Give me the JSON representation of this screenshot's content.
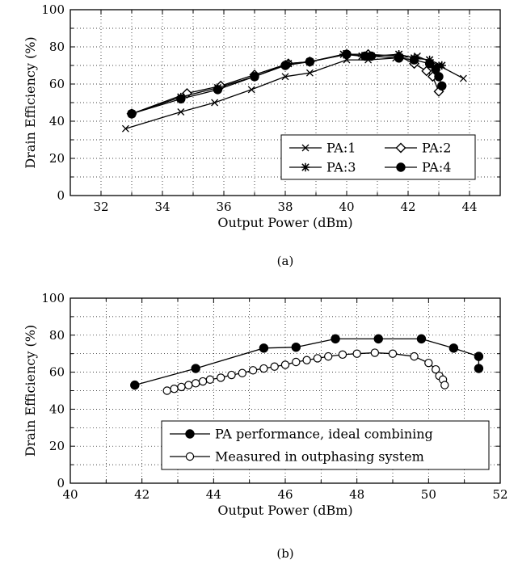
{
  "chart_data": [
    {
      "type": "line",
      "caption": "(a)",
      "xlabel": "Output Power (dBm)",
      "ylabel": "Drain Efficiency (%)",
      "xlim": [
        31,
        45
      ],
      "ylim": [
        0,
        100
      ],
      "xticks": [
        32,
        34,
        36,
        38,
        40,
        42,
        44
      ],
      "yticks": [
        0,
        20,
        40,
        60,
        80,
        100
      ],
      "grid": true,
      "legend_position": "bottom-right",
      "legend_columns": 2,
      "series": [
        {
          "name": "PA:1",
          "marker": "x",
          "x": [
            32.8,
            34.6,
            35.7,
            36.9,
            38.0,
            38.8,
            40.0,
            40.7,
            41.6,
            42.3,
            43.0,
            43.8
          ],
          "y": [
            36,
            45,
            50,
            57,
            64,
            66,
            73,
            73,
            74,
            75,
            70,
            63
          ]
        },
        {
          "name": "PA:2",
          "marker": "diamond-open",
          "x": [
            33.0,
            34.8,
            35.9,
            37.0,
            38.1,
            38.8,
            40.0,
            40.7,
            41.7,
            42.2,
            42.6,
            42.8,
            43.0
          ],
          "y": [
            44,
            55,
            59,
            65,
            71,
            72,
            76,
            76,
            75,
            71,
            67,
            64,
            56
          ]
        },
        {
          "name": "PA:3",
          "marker": "asterisk",
          "x": [
            33.0,
            34.6,
            35.8,
            37.0,
            38.1,
            38.8,
            39.9,
            40.5,
            40.8,
            41.7,
            42.2,
            42.7,
            43.1
          ],
          "y": [
            44,
            53,
            58,
            64,
            71,
            72,
            76,
            75,
            75,
            76,
            74,
            73,
            70
          ]
        },
        {
          "name": "PA:4",
          "marker": "circle-filled",
          "x": [
            33.0,
            34.6,
            35.8,
            37.0,
            38.0,
            38.8,
            40.0,
            40.6,
            40.8,
            41.7,
            42.2,
            42.7,
            42.9,
            43.0,
            43.1
          ],
          "y": [
            44,
            52,
            57,
            64,
            70,
            72,
            76,
            75,
            75,
            74,
            73,
            71,
            68,
            64,
            59
          ]
        }
      ]
    },
    {
      "type": "line",
      "caption": "(b)",
      "xlabel": "Output Power (dBm)",
      "ylabel": "Drain Efficiency (%)",
      "xlim": [
        40,
        52
      ],
      "ylim": [
        0,
        100
      ],
      "xticks": [
        40,
        42,
        44,
        46,
        48,
        50,
        52
      ],
      "yticks": [
        0,
        20,
        40,
        60,
        80,
        100
      ],
      "grid": true,
      "legend_position": "bottom-right",
      "legend_columns": 1,
      "series": [
        {
          "name": "PA performance, ideal combining",
          "marker": "circle-filled",
          "x": [
            41.8,
            43.5,
            45.4,
            46.3,
            47.4,
            48.6,
            49.8,
            50.7,
            51.4,
            51.4
          ],
          "y": [
            53,
            62,
            73,
            73.5,
            78,
            78,
            78,
            73,
            68.5,
            62
          ]
        },
        {
          "name": "Measured in outphasing system",
          "marker": "circle-open",
          "x": [
            42.7,
            42.9,
            43.1,
            43.3,
            43.5,
            43.7,
            43.9,
            44.2,
            44.5,
            44.8,
            45.1,
            45.4,
            45.7,
            46.0,
            46.3,
            46.6,
            46.9,
            47.2,
            47.6,
            48.0,
            48.5,
            49.0,
            49.6,
            50.0,
            50.2,
            50.3,
            50.4,
            50.45
          ],
          "y": [
            50,
            51,
            52,
            53,
            54,
            55,
            56,
            57,
            58.5,
            59.5,
            61,
            62,
            63,
            64,
            65.5,
            66.5,
            67.5,
            68.5,
            69.5,
            70,
            70.5,
            70,
            68.5,
            65,
            61.5,
            58,
            56,
            53
          ]
        }
      ]
    }
  ]
}
